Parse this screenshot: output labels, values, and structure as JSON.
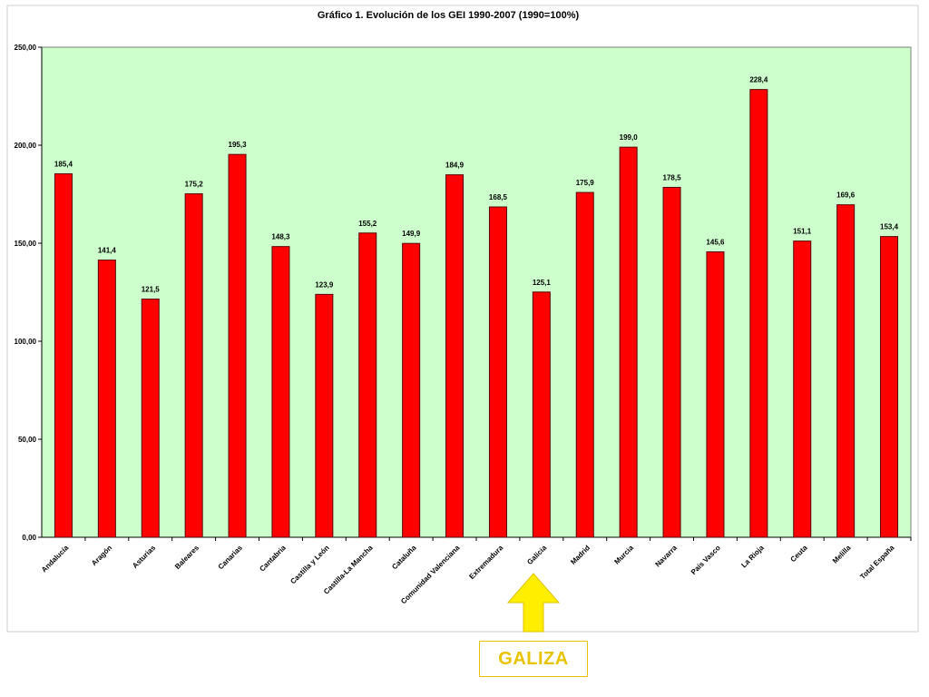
{
  "chart_data": {
    "type": "bar",
    "title": "Gráfico 1. Evolución de los GEI 1990-2007 (1990=100%)",
    "xlabel": "",
    "ylabel": "",
    "ylim": [
      0,
      250
    ],
    "yticks": [
      0,
      50,
      100,
      150,
      200,
      250
    ],
    "ytick_labels": [
      "0,00",
      "50,00",
      "100,00",
      "150,00",
      "200,00",
      "250,00"
    ],
    "grid": false,
    "legend": "none",
    "colors": {
      "bar": "#ff0000",
      "bar_edge": "#5a0000",
      "plot_bg": "#ccffcc"
    },
    "categories": [
      "Andalucía",
      "Aragón",
      "Asturias",
      "Baleares",
      "Canarias",
      "Cantabria",
      "Castilla y León",
      "Castilla-La Mancha",
      "Cataluña",
      "Comunidad Valenciana",
      "Extremadura",
      "Galicia",
      "Madrid",
      "Murcia",
      "Navarra",
      "País Vasco",
      "La Rioja",
      "Ceuta",
      "Melilla",
      "Total España"
    ],
    "values": [
      185.4,
      141.4,
      121.5,
      175.2,
      195.3,
      148.3,
      123.9,
      155.2,
      149.9,
      184.9,
      168.5,
      125.1,
      175.9,
      199.0,
      178.5,
      145.6,
      228.4,
      151.1,
      169.6,
      153.4
    ],
    "value_labels": [
      "185,4",
      "141,4",
      "121,5",
      "175,2",
      "195,3",
      "148,3",
      "123,9",
      "155,2",
      "149,9",
      "184,9",
      "168,5",
      "125,1",
      "175,9",
      "199,0",
      "178,5",
      "145,6",
      "228,4",
      "151,1",
      "169,6",
      "153,4"
    ]
  },
  "annotation": {
    "label": "GALIZA",
    "target_category": "Galicia",
    "color": "#ffee00",
    "text_color": "#e8c400"
  }
}
